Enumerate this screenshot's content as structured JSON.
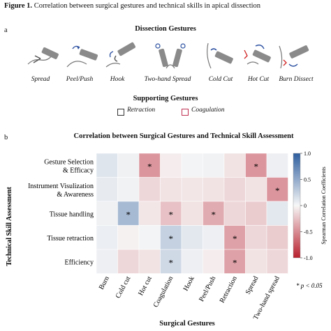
{
  "figure_title_bold": "Figure 1.",
  "figure_title_rest": " Correlation between surgical gestures and technical skills in apical dissection",
  "panel_a": {
    "letter": "a",
    "title": "Dissection Gestures",
    "gestures": [
      {
        "label": "Spread",
        "icon": "spread-instrument-icon"
      },
      {
        "label": "Peel/Push",
        "icon": "peel-push-instrument-icon"
      },
      {
        "label": "Hook",
        "icon": "hook-instrument-icon"
      },
      {
        "label": "Two-hand Spread",
        "icon": "two-hand-spread-instrument-icon"
      },
      {
        "label": "Cold Cut",
        "icon": "cold-cut-instrument-icon"
      },
      {
        "label": "Hot Cut",
        "icon": "hot-cut-instrument-icon"
      },
      {
        "label": "Burn Dissect",
        "icon": "burn-dissect-instrument-icon"
      }
    ],
    "supporting_title": "Supporting Gestures",
    "supporting": [
      {
        "label": "Retraction",
        "color": "#333333"
      },
      {
        "label": "Coagulation",
        "color": "#c03050"
      }
    ]
  },
  "panel_b": {
    "letter": "b",
    "footnote": "* p < 0.05"
  },
  "chart_data": {
    "type": "heatmap",
    "title": "Correlation between Surgical Gestures and  Technical Skill Assessment",
    "xlabel": "Surgical Gestures",
    "ylabel": "Technical Skill Assessment",
    "x_categories": [
      "Burn",
      "Cold cut",
      "Hot cut",
      "Coagulation",
      "Hook",
      "Peel/Push",
      "Retraction",
      "Spread",
      "Two-hand spread"
    ],
    "y_categories": [
      "Gesture Selection & Efficacy",
      "Instrument Visulization & Awareness",
      "Tissue handling",
      "Tissue retraction",
      "Efficiency"
    ],
    "values": [
      [
        0.12,
        0.04,
        -0.45,
        -0.05,
        0.02,
        0.03,
        -0.1,
        -0.45,
        0.05
      ],
      [
        0.08,
        0.03,
        -0.15,
        -0.1,
        -0.08,
        -0.1,
        -0.15,
        -0.1,
        -0.45
      ],
      [
        0.04,
        0.4,
        -0.08,
        -0.25,
        -0.1,
        -0.35,
        -0.15,
        -0.2,
        0.1
      ],
      [
        0.06,
        -0.03,
        0.02,
        0.25,
        0.1,
        0.05,
        -0.4,
        -0.15,
        -0.2
      ],
      [
        0.05,
        -0.15,
        -0.1,
        0.2,
        0.05,
        -0.05,
        -0.4,
        -0.1,
        -0.15
      ]
    ],
    "significant": [
      [
        0,
        2
      ],
      [
        0,
        7
      ],
      [
        1,
        8
      ],
      [
        2,
        1
      ],
      [
        2,
        3
      ],
      [
        2,
        5
      ],
      [
        3,
        3
      ],
      [
        3,
        6
      ],
      [
        4,
        3
      ],
      [
        4,
        6
      ]
    ],
    "significance_marker": "*",
    "colorbar": {
      "label": "Spearman Correlation Coefficients",
      "range": [
        -1.0,
        1.0
      ],
      "ticks": [
        "1.0",
        "0.5",
        "0",
        "-0.5",
        "-1.0"
      ],
      "positive_color": "#2e5e9e",
      "negative_color": "#b8202e"
    }
  }
}
